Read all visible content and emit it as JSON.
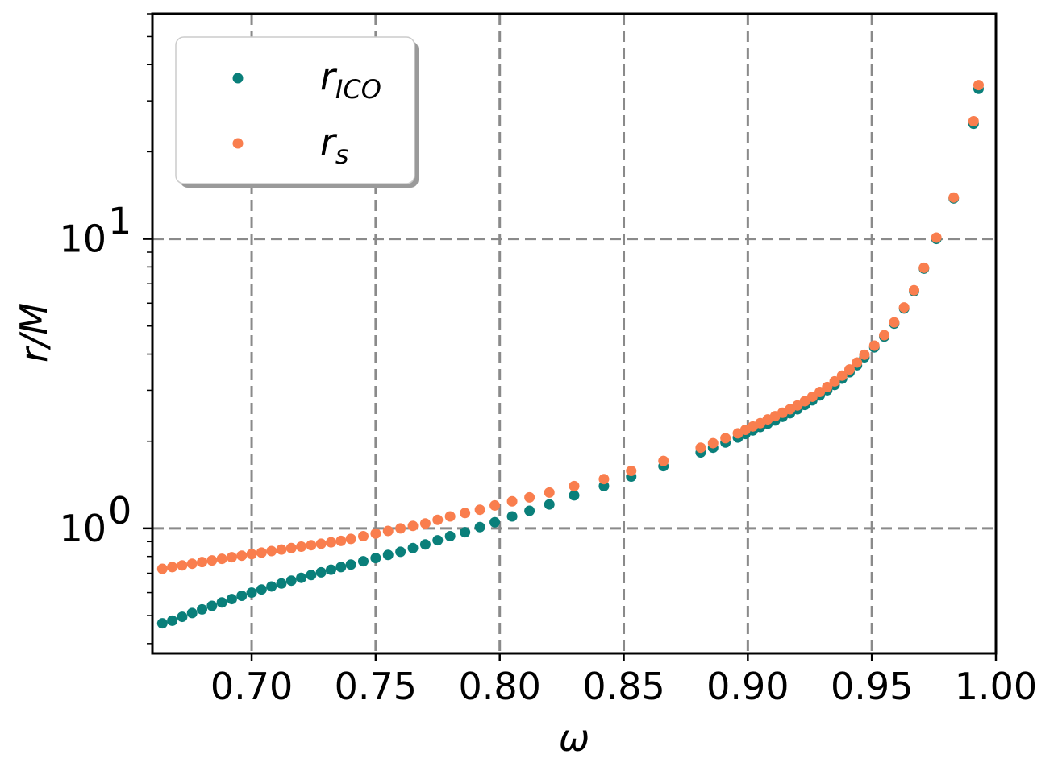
{
  "chart_data": {
    "type": "scatter",
    "xlabel": "ω",
    "ylabel": "r/M",
    "xlim": [
      0.66,
      1.0
    ],
    "ylim": [
      0.37,
      60
    ],
    "yscale": "log",
    "grid": true,
    "legend_position": "top-left",
    "x_ticks": [
      {
        "value": 0.7,
        "label": "0.70"
      },
      {
        "value": 0.75,
        "label": "0.75"
      },
      {
        "value": 0.8,
        "label": "0.80"
      },
      {
        "value": 0.85,
        "label": "0.85"
      },
      {
        "value": 0.9,
        "label": "0.90"
      },
      {
        "value": 0.95,
        "label": "0.95"
      },
      {
        "value": 1.0,
        "label": "1.00"
      }
    ],
    "y_ticks": [
      {
        "value": 1,
        "base": "10",
        "exp": "0"
      },
      {
        "value": 10,
        "base": "10",
        "exp": "1"
      }
    ],
    "series": [
      {
        "name": "r",
        "name_sub": "ICO",
        "color": "#0a7f7a",
        "points": [
          [
            0.664,
            0.47
          ],
          [
            0.668,
            0.48
          ],
          [
            0.672,
            0.495
          ],
          [
            0.676,
            0.51
          ],
          [
            0.68,
            0.525
          ],
          [
            0.684,
            0.54
          ],
          [
            0.688,
            0.555
          ],
          [
            0.692,
            0.57
          ],
          [
            0.696,
            0.585
          ],
          [
            0.7,
            0.6
          ],
          [
            0.704,
            0.615
          ],
          [
            0.708,
            0.63
          ],
          [
            0.712,
            0.645
          ],
          [
            0.716,
            0.66
          ],
          [
            0.72,
            0.675
          ],
          [
            0.724,
            0.69
          ],
          [
            0.728,
            0.705
          ],
          [
            0.732,
            0.72
          ],
          [
            0.736,
            0.735
          ],
          [
            0.74,
            0.75
          ],
          [
            0.745,
            0.77
          ],
          [
            0.75,
            0.79
          ],
          [
            0.755,
            0.81
          ],
          [
            0.76,
            0.83
          ],
          [
            0.765,
            0.855
          ],
          [
            0.77,
            0.88
          ],
          [
            0.775,
            0.91
          ],
          [
            0.78,
            0.94
          ],
          [
            0.786,
            0.97
          ],
          [
            0.792,
            1.01
          ],
          [
            0.798,
            1.05
          ],
          [
            0.805,
            1.1
          ],
          [
            0.812,
            1.15
          ],
          [
            0.82,
            1.21
          ],
          [
            0.83,
            1.3
          ],
          [
            0.842,
            1.4
          ],
          [
            0.853,
            1.51
          ],
          [
            0.866,
            1.64
          ],
          [
            0.881,
            1.83
          ],
          [
            0.886,
            1.9
          ],
          [
            0.891,
            1.98
          ],
          [
            0.896,
            2.06
          ],
          [
            0.899,
            2.12
          ],
          [
            0.902,
            2.18
          ],
          [
            0.905,
            2.24
          ],
          [
            0.908,
            2.3
          ],
          [
            0.911,
            2.36
          ],
          [
            0.914,
            2.43
          ],
          [
            0.917,
            2.5
          ],
          [
            0.92,
            2.58
          ],
          [
            0.923,
            2.67
          ],
          [
            0.926,
            2.77
          ],
          [
            0.929,
            2.88
          ],
          [
            0.932,
            3.0
          ],
          [
            0.935,
            3.13
          ],
          [
            0.938,
            3.29
          ],
          [
            0.941,
            3.46
          ],
          [
            0.944,
            3.66
          ],
          [
            0.947,
            3.9
          ],
          [
            0.951,
            4.22
          ],
          [
            0.955,
            4.6
          ],
          [
            0.959,
            5.1
          ],
          [
            0.963,
            5.75
          ],
          [
            0.967,
            6.6
          ],
          [
            0.971,
            7.9
          ],
          [
            0.976,
            10.0
          ],
          [
            0.983,
            13.8
          ],
          [
            0.991,
            25.0
          ],
          [
            0.993,
            33.0
          ]
        ]
      },
      {
        "name": "r",
        "name_sub": "s",
        "color": "#f97e4e",
        "points": [
          [
            0.664,
            0.725
          ],
          [
            0.668,
            0.735
          ],
          [
            0.672,
            0.745
          ],
          [
            0.676,
            0.755
          ],
          [
            0.68,
            0.765
          ],
          [
            0.684,
            0.775
          ],
          [
            0.688,
            0.785
          ],
          [
            0.692,
            0.795
          ],
          [
            0.696,
            0.805
          ],
          [
            0.7,
            0.815
          ],
          [
            0.704,
            0.825
          ],
          [
            0.708,
            0.835
          ],
          [
            0.712,
            0.845
          ],
          [
            0.716,
            0.855
          ],
          [
            0.72,
            0.865
          ],
          [
            0.724,
            0.875
          ],
          [
            0.728,
            0.885
          ],
          [
            0.732,
            0.895
          ],
          [
            0.736,
            0.905
          ],
          [
            0.74,
            0.92
          ],
          [
            0.745,
            0.94
          ],
          [
            0.75,
            0.96
          ],
          [
            0.755,
            0.98
          ],
          [
            0.76,
            1.0
          ],
          [
            0.765,
            1.02
          ],
          [
            0.77,
            1.04
          ],
          [
            0.775,
            1.07
          ],
          [
            0.78,
            1.1
          ],
          [
            0.786,
            1.13
          ],
          [
            0.792,
            1.16
          ],
          [
            0.798,
            1.2
          ],
          [
            0.805,
            1.24
          ],
          [
            0.812,
            1.28
          ],
          [
            0.82,
            1.33
          ],
          [
            0.83,
            1.4
          ],
          [
            0.842,
            1.48
          ],
          [
            0.853,
            1.58
          ],
          [
            0.866,
            1.71
          ],
          [
            0.881,
            1.9
          ],
          [
            0.886,
            1.97
          ],
          [
            0.891,
            2.05
          ],
          [
            0.896,
            2.13
          ],
          [
            0.899,
            2.19
          ],
          [
            0.902,
            2.25
          ],
          [
            0.905,
            2.31
          ],
          [
            0.908,
            2.38
          ],
          [
            0.911,
            2.44
          ],
          [
            0.914,
            2.51
          ],
          [
            0.917,
            2.58
          ],
          [
            0.92,
            2.66
          ],
          [
            0.923,
            2.75
          ],
          [
            0.926,
            2.85
          ],
          [
            0.929,
            2.96
          ],
          [
            0.932,
            3.08
          ],
          [
            0.935,
            3.22
          ],
          [
            0.938,
            3.37
          ],
          [
            0.941,
            3.54
          ],
          [
            0.944,
            3.74
          ],
          [
            0.947,
            3.98
          ],
          [
            0.951,
            4.28
          ],
          [
            0.955,
            4.65
          ],
          [
            0.959,
            5.15
          ],
          [
            0.963,
            5.8
          ],
          [
            0.967,
            6.65
          ],
          [
            0.971,
            7.95
          ],
          [
            0.976,
            10.1
          ],
          [
            0.983,
            13.9
          ],
          [
            0.991,
            25.5
          ],
          [
            0.993,
            34.0
          ]
        ]
      }
    ]
  }
}
